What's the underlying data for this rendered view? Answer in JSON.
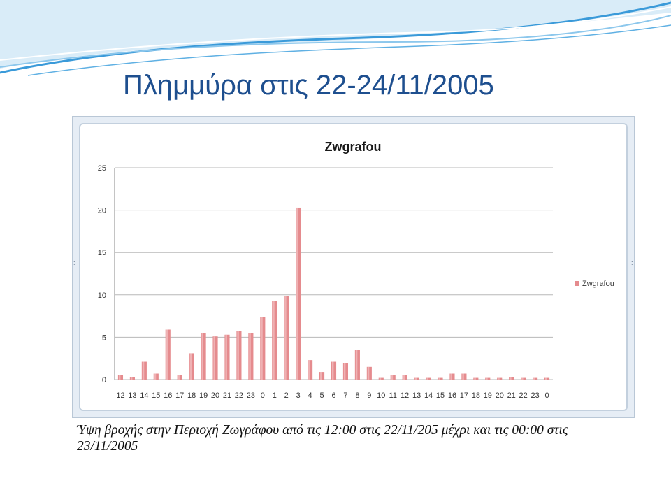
{
  "slide": {
    "title": "Πλημμύρα στις 22-24/11/2005",
    "caption": "Ύψη βροχής στην Περιοχή Ζωγράφου από τις 12:00 στις 22/11/205 μέχρι και τις 00:00 στις 23/11/2005"
  },
  "colors": {
    "title": "#1e4f8f",
    "bar": "#e58b8e",
    "bar_highlight": "#f8d3d4",
    "grid": "#b8b8b8",
    "wave": "#3a9ad9",
    "wave_light": "#cfe7f6"
  },
  "chart_data": {
    "type": "bar",
    "title": "Zwgrafou",
    "xlabel": "",
    "ylabel": "",
    "ylim": [
      0,
      25
    ],
    "yticks": [
      "0",
      "5",
      "10",
      "15",
      "20",
      "25"
    ],
    "grid": true,
    "legend_position": "right",
    "categories": [
      "12",
      "13",
      "14",
      "15",
      "16",
      "17",
      "18",
      "19",
      "20",
      "21",
      "22",
      "23",
      "0",
      "1",
      "2",
      "3",
      "4",
      "5",
      "6",
      "7",
      "8",
      "9",
      "10",
      "11",
      "12",
      "13",
      "14",
      "15",
      "16",
      "17",
      "18",
      "19",
      "20",
      "21",
      "22",
      "23",
      "0"
    ],
    "series": [
      {
        "name": "Zwgrafou",
        "values": [
          0.5,
          0.3,
          2.1,
          0.7,
          5.9,
          0.5,
          3.1,
          5.5,
          5.1,
          5.3,
          5.7,
          5.5,
          7.4,
          9.3,
          9.9,
          20.3,
          2.3,
          0.9,
          2.1,
          1.9,
          3.5,
          1.5,
          0.2,
          0.5,
          0.5,
          0.2,
          0.2,
          0.2,
          0.7,
          0.7,
          0.2,
          0.2,
          0.2,
          0.3,
          0.2,
          0.2,
          0.2
        ]
      }
    ]
  }
}
